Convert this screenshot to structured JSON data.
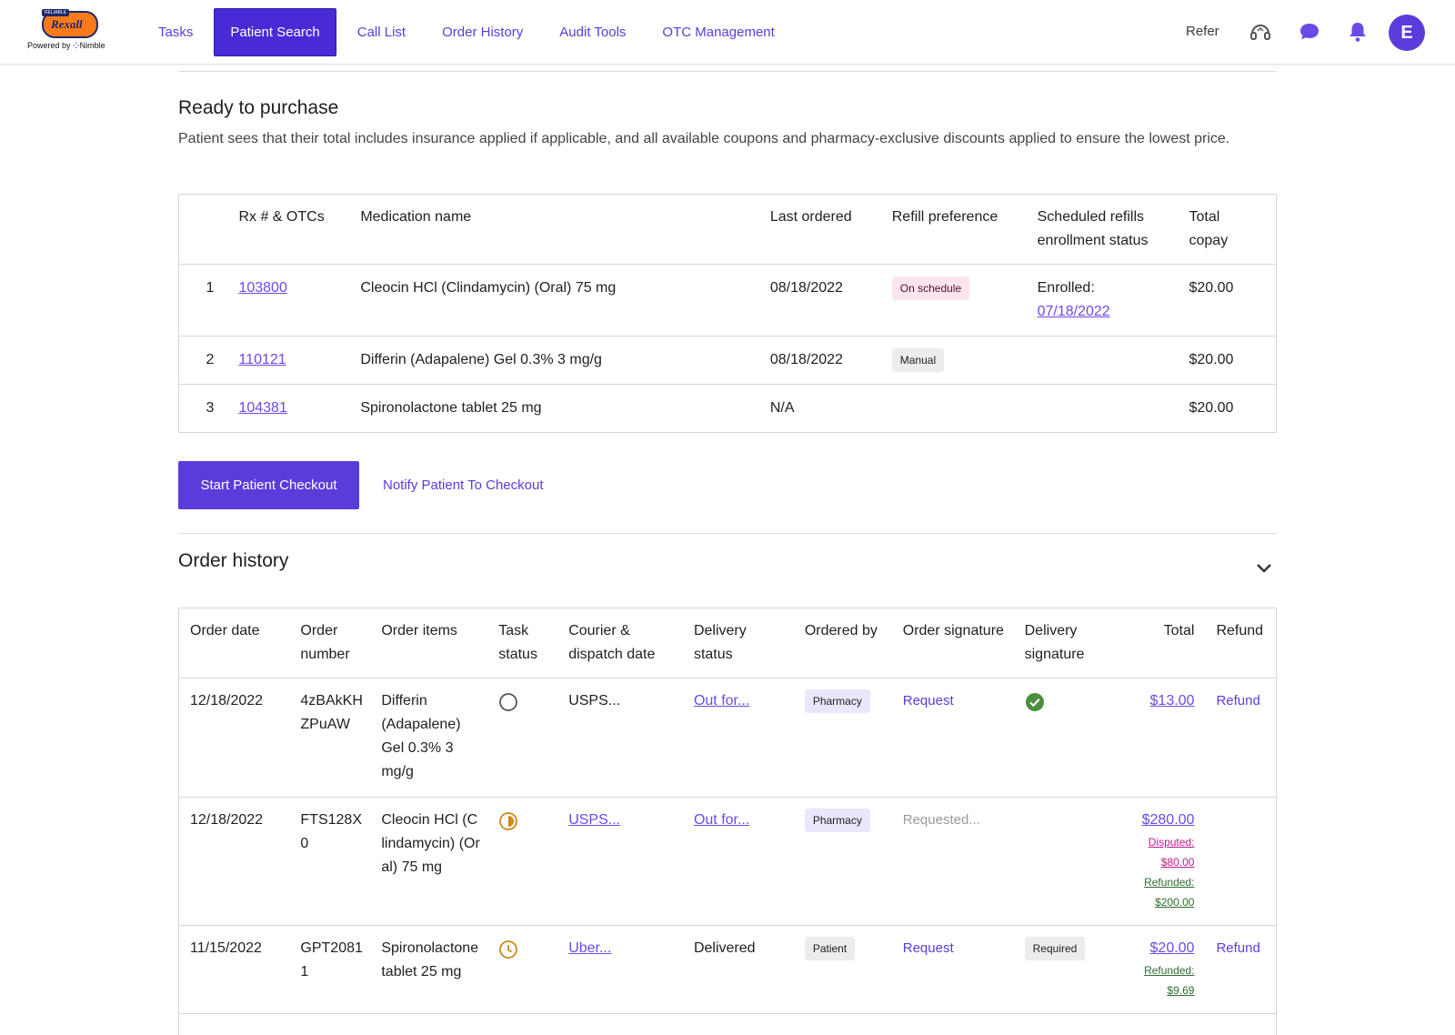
{
  "brand": {
    "badge_top": "RELIABLE",
    "logo_word": "Rexall",
    "powered_by": "Powered by",
    "partner": "Nimble"
  },
  "nav": {
    "items": [
      {
        "label": "Tasks",
        "active": false
      },
      {
        "label": "Patient Search",
        "active": true
      },
      {
        "label": "Call List",
        "active": false
      },
      {
        "label": "Order History",
        "active": false
      },
      {
        "label": "Audit Tools",
        "active": false
      },
      {
        "label": "OTC Management",
        "active": false
      }
    ],
    "refer": "Refer",
    "icons": [
      "headset-icon",
      "chat-icon",
      "bell-icon"
    ],
    "avatar_initial": "E"
  },
  "ready": {
    "title": "Ready to purchase",
    "description": "Patient sees that their total includes insurance applied if applicable, and all available coupons and pharmacy-exclusive discounts applied to ensure the lowest price.",
    "headers": {
      "rx": "Rx # & OTCs",
      "med": "Medication name",
      "last": "Last ordered",
      "pref": "Refill preference",
      "sched": "Scheduled refills enrollment status",
      "total": "Total copay"
    },
    "rows": [
      {
        "num": "1",
        "rx": "103800",
        "med": "Cleocin HCl (Clindamycin) (Oral) 75 mg",
        "last": "08/18/2022",
        "pref": "On schedule",
        "enrolled_label": "Enrolled:",
        "enrolled_date": "07/18/2022",
        "total": "$20.00"
      },
      {
        "num": "2",
        "rx": "110121",
        "med": "Differin (Adapalene) Gel 0.3% 3 mg/g",
        "last": "08/18/2022",
        "pref": "Manual",
        "total": "$20.00"
      },
      {
        "num": "3",
        "rx": "104381",
        "med": "Spironolactone tablet 25 mg",
        "last": "N/A",
        "total": "$20.00"
      }
    ],
    "start_button": "Start Patient Checkout",
    "notify_link": "Notify Patient To Checkout"
  },
  "orders": {
    "title": "Order history",
    "headers": {
      "date": "Order date",
      "number": "Order number",
      "items": "Order items",
      "task": "Task status",
      "courier": "Courier & dispatch date",
      "delivery": "Delivery status",
      "by": "Ordered by",
      "osig": "Order signature",
      "dsig": "Delivery signature",
      "total": "Total",
      "refund": "Refund"
    },
    "rows": [
      {
        "date": "12/18/2022",
        "number": "4zBAkKHZPuAW",
        "items": "Differin (Adapalene) Gel 0.3% 3 mg/g",
        "task_icon": "empty-circle-icon",
        "courier": "USPS...",
        "delivery": "Out for...",
        "by": "Pharmacy",
        "osig": "Request",
        "dsig_icon": "check-circle-icon",
        "total": "$13.00",
        "refund": "Refund"
      },
      {
        "date": "12/18/2022",
        "number": "FTS128X0",
        "items": "Cleocin HCl (Clindamycin) (Oral) 75 mg",
        "task_icon": "half-circle-icon",
        "courier": "USPS...",
        "delivery": "Out for...",
        "by": "Pharmacy",
        "osig": "Requested...",
        "total": "$280.00",
        "disputed_label": "Disputed:",
        "disputed_amount": "$80.00",
        "refunded_label": "Refunded:",
        "refunded_amount": "$200.00"
      },
      {
        "date": "11/15/2022",
        "number": "GPT20811",
        "items": "Spironolactone tablet 25 mg",
        "task_icon": "clock-icon",
        "courier": "Uber...",
        "delivery": "Delivered",
        "by": "Patient",
        "osig": "Request",
        "dsig": "Required",
        "total": "$20.00",
        "refunded_label": "Refunded:",
        "refunded_amount": "$9.69",
        "refund": "Refund"
      }
    ]
  },
  "colors": {
    "accent": "#5b3cdb",
    "nav_active": "#4a2ad6",
    "pill_pink": "#fce4ef",
    "disputed": "#c0188a",
    "refunded": "#2f6b2f",
    "success": "#4a8f3e",
    "task_icon": "#c88a1a"
  }
}
